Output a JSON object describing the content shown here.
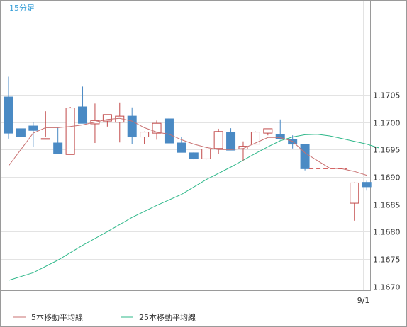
{
  "chart_data": {
    "type": "candlestick",
    "period_label": "15分足",
    "y_ticks": [
      "1.1705",
      "1.1700",
      "1.1695",
      "1.1690",
      "1.1685",
      "1.1680",
      "1.1675",
      "1.1670"
    ],
    "y_tick_values": [
      1.1705,
      1.17,
      1.1695,
      1.169,
      1.1685,
      1.168,
      1.1675,
      1.167
    ],
    "ylim": [
      1.16693,
      1.17222
    ],
    "x_tick_label": "9/1",
    "x_tick_index": 29,
    "x_count": 31,
    "grid": true,
    "legend": [
      {
        "label": "5本移動平均線",
        "color": "#c87070"
      },
      {
        "label": "25本移動平均線",
        "color": "#2fb88a"
      }
    ],
    "colors": {
      "up_border": "#c24a4a",
      "up_fill": "#ffffff",
      "down_fill": "#4a8ac4",
      "down_border": "#4a8ac4",
      "ma5": "#c87070",
      "ma25": "#2fb88a",
      "gap_dash": "#d05050",
      "grid": "#e3e3e3"
    },
    "candles": [
      [
        0,
        1.17046,
        1.17083,
        1.1698,
        1.1697
      ],
      [
        1,
        1.16988,
        1.16988,
        1.16974,
        1.16982
      ],
      [
        2,
        1.16993,
        1.17,
        1.16985,
        1.16955
      ],
      [
        3,
        1.1697,
        1.1702,
        1.1697,
        1.16973
      ],
      [
        4,
        1.16962,
        1.1699,
        1.16943,
        1.16943
      ],
      [
        5,
        1.16941,
        1.17028,
        1.17026,
        1.16941
      ],
      [
        6,
        1.17028,
        1.17065,
        1.16998,
        1.16998
      ],
      [
        7,
        1.16997,
        1.17034,
        1.17003,
        1.16962
      ],
      [
        8,
        1.17002,
        1.17013,
        1.17014,
        1.16992
      ],
      [
        9,
        1.17,
        1.17036,
        1.17011,
        1.16963
      ],
      [
        10,
        1.17011,
        1.17027,
        1.16973,
        1.1696
      ],
      [
        11,
        1.16973,
        1.16983,
        1.16982,
        1.1696
      ],
      [
        12,
        1.1698,
        1.17003,
        1.16998,
        1.16968
      ],
      [
        13,
        1.17006,
        1.17008,
        1.16962,
        1.16962
      ],
      [
        14,
        1.16962,
        1.16973,
        1.16945,
        1.16945
      ],
      [
        15,
        1.16944,
        1.16945,
        1.16934,
        1.16932
      ],
      [
        16,
        1.16933,
        1.16952,
        1.16951,
        1.16932
      ],
      [
        17,
        1.16952,
        1.16988,
        1.16983,
        1.16942
      ],
      [
        18,
        1.16982,
        1.16989,
        1.16949,
        1.16949
      ],
      [
        19,
        1.16951,
        1.16965,
        1.16956,
        1.1693
      ],
      [
        20,
        1.1696,
        1.16983,
        1.16982,
        1.1696
      ],
      [
        21,
        1.1698,
        1.16988,
        1.16988,
        1.16976
      ],
      [
        22,
        1.16978,
        1.17005,
        1.1697,
        1.16968
      ],
      [
        23,
        1.16968,
        1.16976,
        1.1696,
        1.16952
      ],
      [
        24,
        1.1696,
        1.1696,
        1.16915,
        1.16912
      ],
      [
        28,
        1.16852,
        1.1689,
        1.16889,
        1.1682
      ],
      [
        29,
        1.1689,
        1.16893,
        1.16882,
        1.16875
      ]
    ],
    "ma5": [
      [
        0,
        1.1692
      ],
      [
        1,
        1.1695
      ],
      [
        2,
        1.1698
      ],
      [
        3,
        1.1699
      ],
      [
        4,
        1.1699
      ],
      [
        5,
        1.16992
      ],
      [
        6,
        1.16995
      ],
      [
        7,
        1.17
      ],
      [
        8,
        1.17005
      ],
      [
        9,
        1.17007
      ],
      [
        10,
        1.17002
      ],
      [
        11,
        1.1699
      ],
      [
        12,
        1.16982
      ],
      [
        13,
        1.16978
      ],
      [
        14,
        1.16968
      ],
      [
        15,
        1.1696
      ],
      [
        16,
        1.16954
      ],
      [
        17,
        1.1695
      ],
      [
        18,
        1.1695
      ],
      [
        19,
        1.16952
      ],
      [
        20,
        1.16962
      ],
      [
        21,
        1.16972
      ],
      [
        22,
        1.16972
      ],
      [
        23,
        1.16965
      ],
      [
        24,
        1.16944
      ],
      [
        25,
        1.1693
      ],
      [
        26,
        1.16916
      ],
      [
        27,
        1.16915
      ],
      [
        28,
        1.1691
      ],
      [
        29,
        1.16903
      ]
    ],
    "ma25": [
      [
        0,
        1.16711
      ],
      [
        2,
        1.16725
      ],
      [
        4,
        1.16748
      ],
      [
        6,
        1.16775
      ],
      [
        8,
        1.168
      ],
      [
        10,
        1.16826
      ],
      [
        12,
        1.16848
      ],
      [
        14,
        1.16868
      ],
      [
        16,
        1.16895
      ],
      [
        18,
        1.16918
      ],
      [
        20,
        1.16943
      ],
      [
        21,
        1.16955
      ],
      [
        22,
        1.16966
      ],
      [
        23,
        1.16973
      ],
      [
        24,
        1.16977
      ],
      [
        25,
        1.16978
      ],
      [
        26,
        1.16975
      ],
      [
        27,
        1.1697
      ],
      [
        28,
        1.16965
      ],
      [
        29,
        1.1696
      ],
      [
        30,
        1.16953
      ]
    ],
    "gap_line": {
      "from_index": 24,
      "to_index": 28,
      "value": 1.16915
    }
  }
}
